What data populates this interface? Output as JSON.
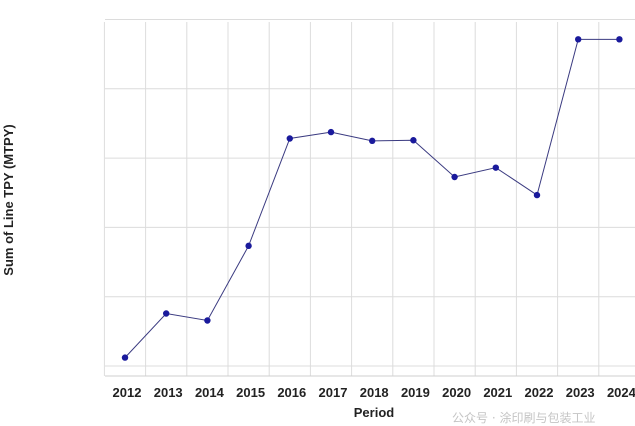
{
  "chart_data": {
    "type": "line",
    "title": "",
    "xlabel": "Period",
    "ylabel": "Sum of Line TPY (MTPY)",
    "categories": [
      "2012",
      "2013",
      "2014",
      "2015",
      "2016",
      "2017",
      "2018",
      "2019",
      "2020",
      "2021",
      "2022",
      "2023",
      "2024"
    ],
    "series": [
      {
        "values": [
          7.2,
          45,
          39,
          103,
          195,
          200.5,
          193,
          193.5,
          162,
          170,
          146.5,
          280,
          280
        ]
      }
    ],
    "ylim": [
      0,
      297
    ],
    "ygrid": [
      0,
      59.4,
      118.8,
      178.2,
      237.6,
      297
    ],
    "y_tick_labels_shown": false,
    "grid": true,
    "line_color": "#3a3a80",
    "marker_color": "#1a1a9c",
    "gridline_color": "#dcdcdc"
  },
  "watermark": "公众号 · 涂印刷与包装工业"
}
